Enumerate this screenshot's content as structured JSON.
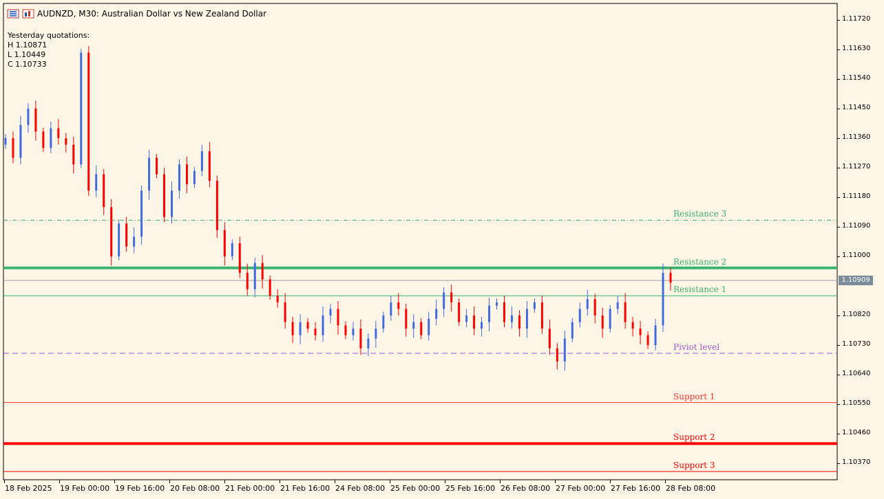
{
  "header": {
    "symbol_line": "AUDNZD, M30:  Australian Dollar vs New Zealand Dollar"
  },
  "quotes": {
    "title": "Yesterday quotations:",
    "high": "H 1.10871",
    "low": "L 1.10449",
    "close": "C 1.10733"
  },
  "price_scale": {
    "ticks": [
      "1.11720",
      "1.11630",
      "1.11540",
      "1.11450",
      "1.11360",
      "1.11270",
      "1.11180",
      "1.11090",
      "1.11000",
      "1.10820",
      "1.10730",
      "1.10640",
      "1.10550",
      "1.10460",
      "1.10370"
    ],
    "current_price": "1.10909"
  },
  "time_axis": {
    "labels": [
      "18 Feb 2025",
      "19 Feb 00:00",
      "19 Feb 16:00",
      "20 Feb 08:00",
      "21 Feb 00:00",
      "21 Feb 16:00",
      "24 Feb 08:00",
      "25 Feb 00:00",
      "25 Feb 16:00",
      "26 Feb 08:00",
      "27 Feb 00:00",
      "27 Feb 16:00",
      "28 Feb 08:00"
    ]
  },
  "levels": [
    {
      "label": "Resistance 3",
      "price": 1.1111,
      "color": "#3cb371",
      "style": "dashdot",
      "weight": 1
    },
    {
      "label": "Resistance 2",
      "price": 1.10965,
      "color": "#3cb371",
      "style": "solid",
      "weight": 4
    },
    {
      "label": "Resistance 1",
      "price": 1.1088,
      "color": "#3cb371",
      "style": "solid",
      "weight": 1
    },
    {
      "label": "Piviot level",
      "price": 1.10705,
      "color": "#9b59d0",
      "style": "dashed",
      "weight": 1
    },
    {
      "label": "Support 1",
      "price": 1.10555,
      "color": "#ff3030",
      "style": "solid",
      "weight": 1
    },
    {
      "label": "Support 2",
      "price": 1.1043,
      "color": "#ff0000",
      "style": "solid",
      "weight": 4
    },
    {
      "label": "Support 3",
      "price": 1.10345,
      "color": "#ff0000",
      "style": "solid",
      "weight": 1
    }
  ],
  "colors": {
    "background": "#fdf5e6",
    "bull": "#4169e1",
    "bear": "#ff0000",
    "doji": "#32cd32",
    "bid_line": "#a0a0a0"
  },
  "chart_data": {
    "type": "candlestick",
    "symbol": "AUDNZD",
    "timeframe": "M30",
    "ylim": [
      1.1032,
      1.1177
    ],
    "pivot_levels": {
      "R3": 1.1111,
      "R2": 1.10965,
      "R1": 1.1088,
      "Pivot": 1.10705,
      "S1": 1.10555,
      "S2": 1.1043,
      "S3": 1.10345
    },
    "close_series": [
      1.1136,
      1.113,
      1.114,
      1.1145,
      1.1138,
      1.1133,
      1.1139,
      1.1136,
      1.1134,
      1.1128,
      1.1162,
      1.112,
      1.1125,
      1.1115,
      1.11,
      1.111,
      1.1103,
      1.1106,
      1.112,
      1.113,
      1.1125,
      1.1112,
      1.112,
      1.1128,
      1.1122,
      1.1126,
      1.1132,
      1.1123,
      1.1108,
      1.11,
      1.1104,
      1.1095,
      1.109,
      1.1098,
      1.1093,
      1.1088,
      1.1086,
      1.108,
      1.1076,
      1.108,
      1.1078,
      1.1076,
      1.1082,
      1.1084,
      1.1079,
      1.1076,
      1.1078,
      1.1072,
      1.1075,
      1.1078,
      1.1082,
      1.1086,
      1.1084,
      1.1078,
      1.108,
      1.1076,
      1.1081,
      1.1084,
      1.1089,
      1.1086,
      1.108,
      1.1082,
      1.1078,
      1.108,
      1.1085,
      1.1086,
      1.108,
      1.1082,
      1.1078,
      1.1084,
      1.1086,
      1.1078,
      1.1072,
      1.1068,
      1.1075,
      1.108,
      1.1084,
      1.1087,
      1.1082,
      1.1078,
      1.1084,
      1.1086,
      1.108,
      1.1078,
      1.1076,
      1.1073,
      1.1079,
      1.1095,
      1.1092
    ]
  }
}
